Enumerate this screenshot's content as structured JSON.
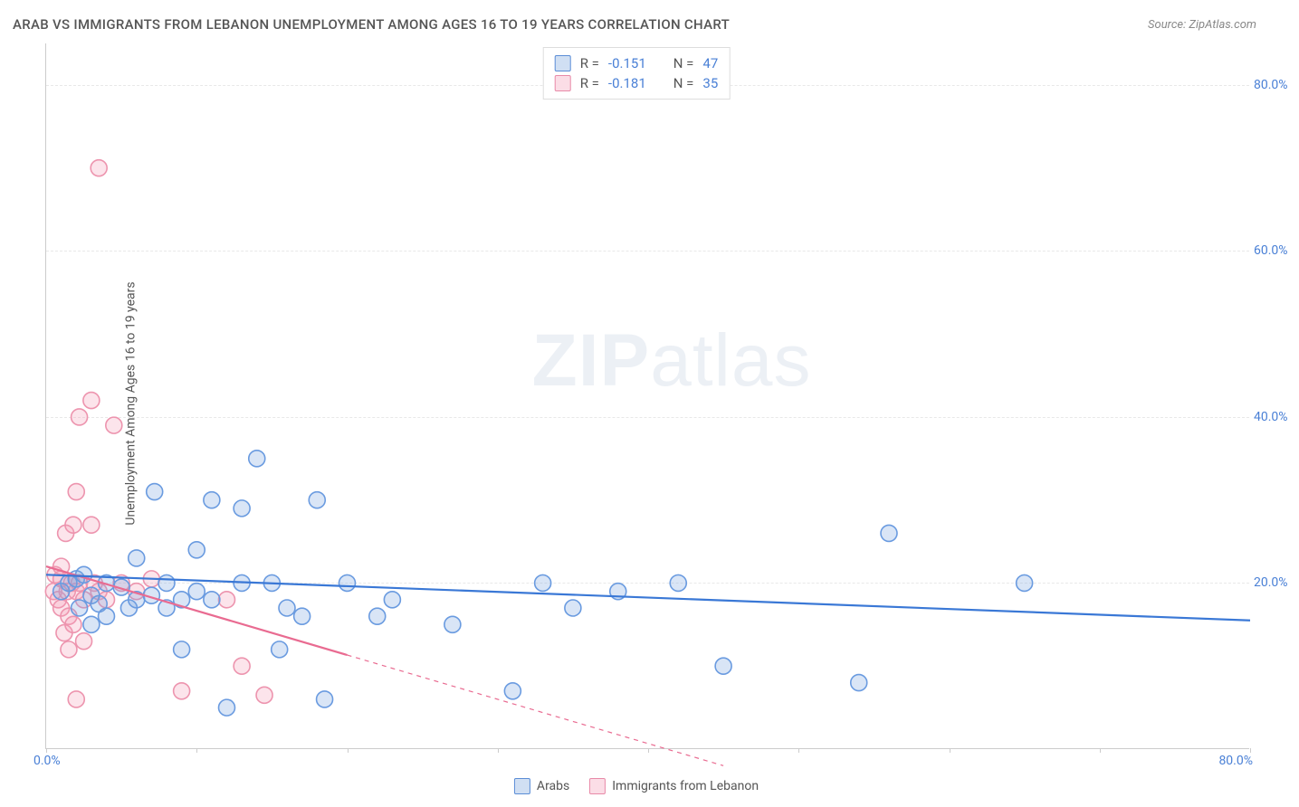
{
  "title": "ARAB VS IMMIGRANTS FROM LEBANON UNEMPLOYMENT AMONG AGES 16 TO 19 YEARS CORRELATION CHART",
  "source": "Source: ZipAtlas.com",
  "y_axis_label": "Unemployment Among Ages 16 to 19 years",
  "watermark_a": "ZIP",
  "watermark_b": "atlas",
  "chart": {
    "type": "scatter",
    "xlim": [
      0,
      80
    ],
    "ylim": [
      0,
      85
    ],
    "x_ticks": [
      "0.0%",
      "80.0%"
    ],
    "y_ticks": [
      {
        "v": 20,
        "label": "20.0%"
      },
      {
        "v": 40,
        "label": "40.0%"
      },
      {
        "v": 60,
        "label": "60.0%"
      },
      {
        "v": 80,
        "label": "80.0%"
      }
    ],
    "x_minor_tick_step": 10,
    "background_color": "#ffffff",
    "grid_color": "#e8e8e8",
    "axis_color": "#cccccc",
    "marker_radius": 9,
    "marker_stroke_width": 1.6,
    "line_width": 2.2
  },
  "series": {
    "arabs": {
      "label": "Arabs",
      "fill": "rgba(119,162,222,0.28)",
      "stroke": "#6a9be0",
      "line_color": "#3a78d6",
      "R": "-0.151",
      "N": "47",
      "points": [
        [
          1,
          19
        ],
        [
          1.5,
          20
        ],
        [
          2,
          20.5
        ],
        [
          2.2,
          17
        ],
        [
          2.5,
          21
        ],
        [
          3,
          18.5
        ],
        [
          3,
          15
        ],
        [
          3.5,
          17.5
        ],
        [
          4,
          20
        ],
        [
          4,
          16
        ],
        [
          5,
          19.5
        ],
        [
          5.5,
          17
        ],
        [
          6,
          18
        ],
        [
          6,
          23
        ],
        [
          7,
          18.5
        ],
        [
          7.2,
          31
        ],
        [
          8,
          17
        ],
        [
          8,
          20
        ],
        [
          9,
          18
        ],
        [
          9,
          12
        ],
        [
          10,
          24
        ],
        [
          10,
          19
        ],
        [
          11,
          30
        ],
        [
          11,
          18
        ],
        [
          12,
          5
        ],
        [
          13,
          29
        ],
        [
          13,
          20
        ],
        [
          14,
          35
        ],
        [
          15,
          20
        ],
        [
          15.5,
          12
        ],
        [
          16,
          17
        ],
        [
          17,
          16
        ],
        [
          18,
          30
        ],
        [
          18.5,
          6
        ],
        [
          20,
          20
        ],
        [
          22,
          16
        ],
        [
          23,
          18
        ],
        [
          27,
          15
        ],
        [
          31,
          7
        ],
        [
          33,
          20
        ],
        [
          35,
          17
        ],
        [
          38,
          19
        ],
        [
          42,
          20
        ],
        [
          45,
          10
        ],
        [
          56,
          26
        ],
        [
          65,
          20
        ],
        [
          54,
          8
        ]
      ],
      "trend": {
        "x1": 0,
        "y1": 21,
        "x2": 80,
        "y2": 15.5,
        "solid_until": 80
      }
    },
    "lebanon": {
      "label": "Immigrants from Lebanon",
      "fill": "rgba(244,158,184,0.28)",
      "stroke": "#ed94ae",
      "line_color": "#e96b91",
      "R": "-0.181",
      "N": "35",
      "points": [
        [
          0.5,
          19
        ],
        [
          0.6,
          21
        ],
        [
          0.8,
          18
        ],
        [
          1,
          22
        ],
        [
          1,
          17
        ],
        [
          1,
          20.5
        ],
        [
          1.2,
          14
        ],
        [
          1.3,
          26
        ],
        [
          1.4,
          19
        ],
        [
          1.5,
          16
        ],
        [
          1.5,
          12
        ],
        [
          1.7,
          20
        ],
        [
          1.8,
          27
        ],
        [
          1.8,
          15
        ],
        [
          2,
          19
        ],
        [
          2,
          31
        ],
        [
          2,
          6
        ],
        [
          2.2,
          20
        ],
        [
          2.2,
          40
        ],
        [
          2.5,
          18
        ],
        [
          2.5,
          13
        ],
        [
          3,
          27
        ],
        [
          3,
          42
        ],
        [
          3.2,
          20
        ],
        [
          3.5,
          19
        ],
        [
          3.5,
          70
        ],
        [
          4,
          18
        ],
        [
          4.5,
          39
        ],
        [
          5,
          20
        ],
        [
          6,
          19
        ],
        [
          7,
          20.5
        ],
        [
          9,
          7
        ],
        [
          12,
          18
        ],
        [
          13,
          10
        ],
        [
          14.5,
          6.5
        ]
      ],
      "trend": {
        "x1": 0,
        "y1": 22,
        "x2": 45,
        "y2": -2,
        "solid_until": 20
      }
    }
  },
  "legend_stats": [
    {
      "swatch": "blue",
      "r": "-0.151",
      "n": "47"
    },
    {
      "swatch": "pink",
      "r": "-0.181",
      "n": "35"
    }
  ],
  "legend_bottom": [
    {
      "swatch": "blue",
      "label": "Arabs"
    },
    {
      "swatch": "pink",
      "label": "Immigrants from Lebanon"
    }
  ]
}
